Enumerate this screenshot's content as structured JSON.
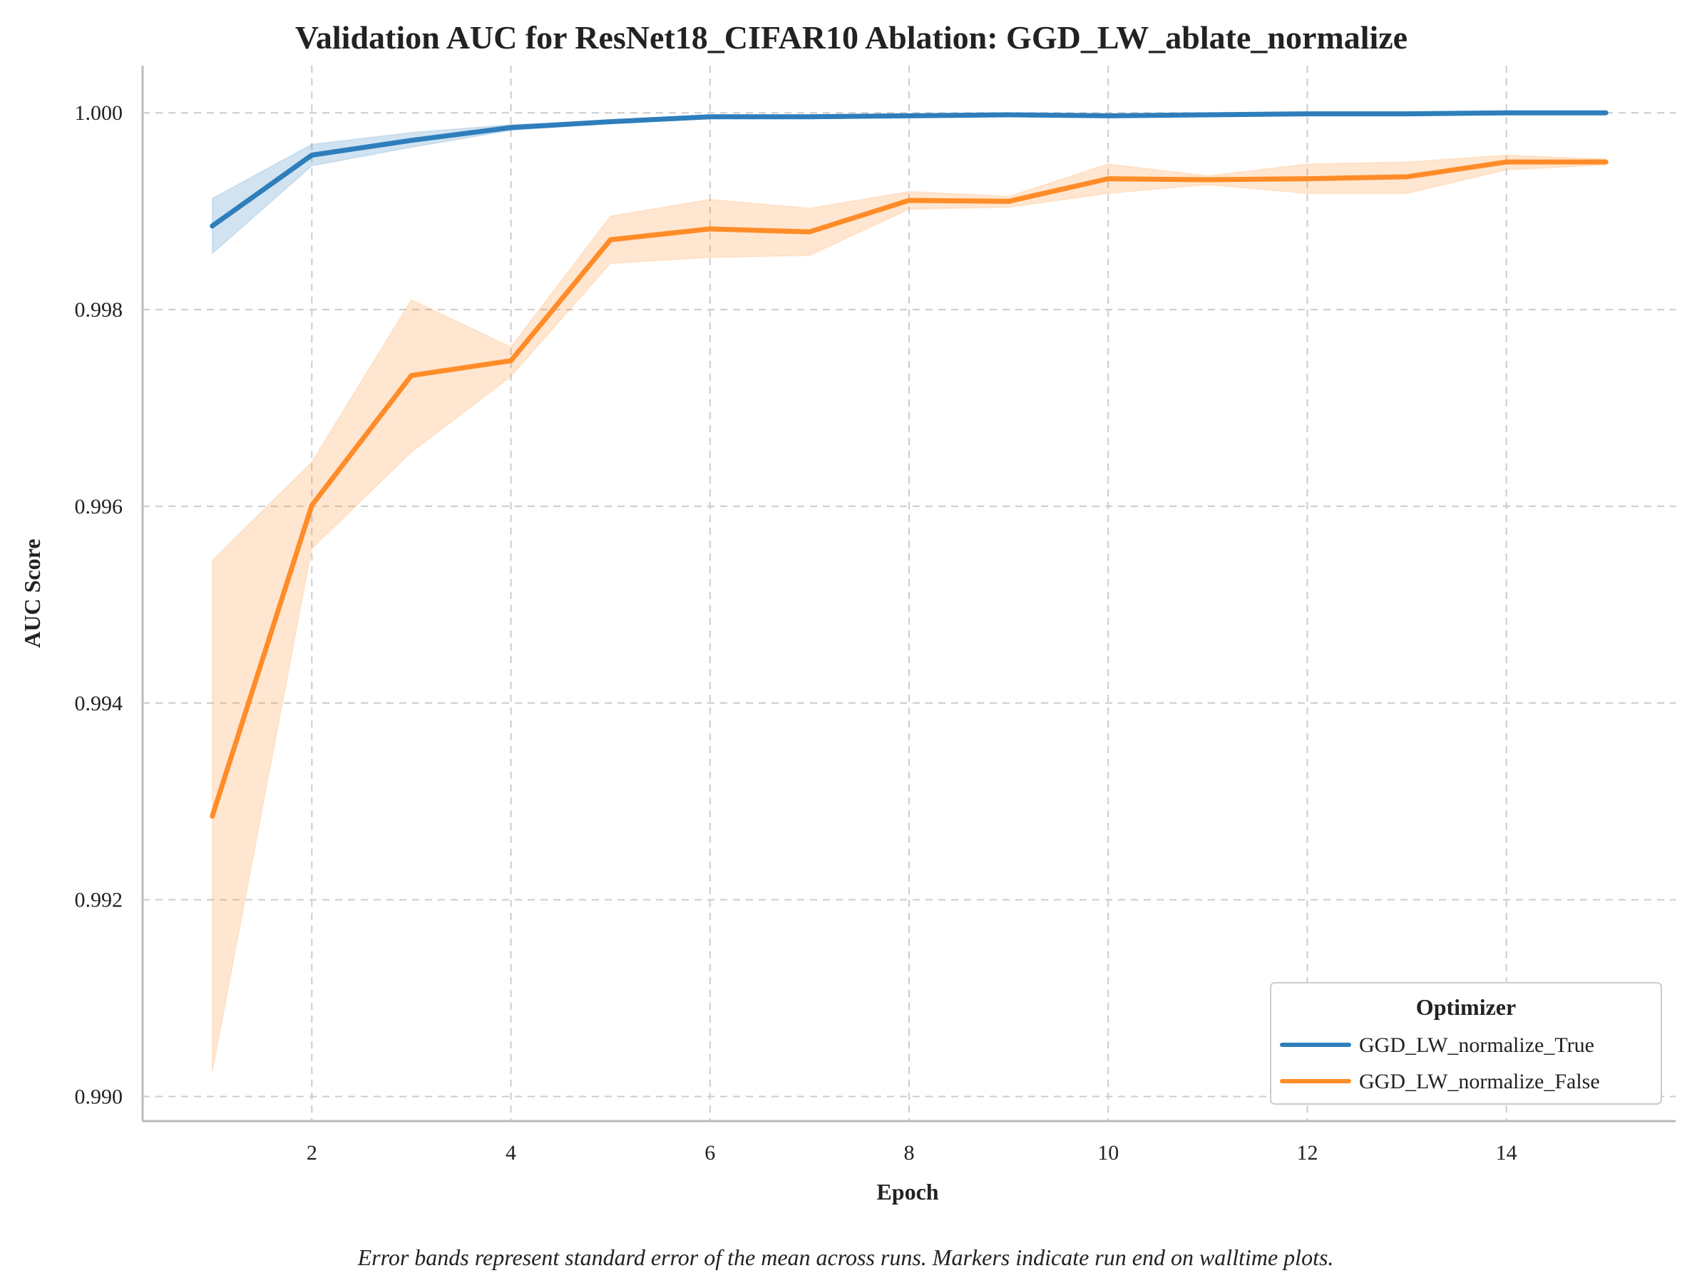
{
  "chart_data": {
    "type": "line",
    "title": "Validation AUC for ResNet18_CIFAR10 Ablation: GGD_LW_ablate_normalize",
    "xlabel": "Epoch",
    "ylabel": "AUC Score",
    "xlim": [
      0.3,
      15.7
    ],
    "ylim": [
      0.98975,
      1.00048
    ],
    "xticks": [
      2,
      4,
      6,
      8,
      10,
      12,
      14
    ],
    "yticks": [
      0.99,
      0.992,
      0.994,
      0.996,
      0.998,
      1.0
    ],
    "ytick_labels": [
      "0.990",
      "0.992",
      "0.994",
      "0.996",
      "0.998",
      "1.000"
    ],
    "grid": true,
    "legend": {
      "title": "Optimizer",
      "position": "bottom-right"
    },
    "x": [
      1,
      2,
      3,
      4,
      5,
      6,
      7,
      8,
      9,
      10,
      11,
      12,
      13,
      14,
      15
    ],
    "series": [
      {
        "name": "GGD_LW_normalize_True",
        "color": "#2e7ebc",
        "values": [
          0.99885,
          0.99957,
          0.99972,
          0.99985,
          0.99991,
          0.99996,
          0.99996,
          0.99997,
          0.99998,
          0.99997,
          0.99998,
          0.99999,
          0.99999,
          1.0,
          1.0
        ],
        "lower": [
          0.99857,
          0.99946,
          0.99965,
          0.99982,
          0.9999,
          0.99995,
          0.99995,
          0.99996,
          0.99997,
          0.99996,
          0.99997,
          0.99998,
          0.99998,
          0.99999,
          0.99999
        ],
        "upper": [
          0.99913,
          0.99968,
          0.9998,
          0.99988,
          0.99992,
          0.99997,
          0.99997,
          0.99998,
          0.99999,
          0.99998,
          0.99999,
          1.0,
          1.0,
          1.0,
          1.0
        ]
      },
      {
        "name": "GGD_LW_normalize_False",
        "color": "#ff8c28",
        "values": [
          0.99285,
          0.99601,
          0.99733,
          0.99748,
          0.99871,
          0.99882,
          0.99879,
          0.99911,
          0.9991,
          0.99933,
          0.99932,
          0.99933,
          0.99935,
          0.9995,
          0.9995
        ],
        "lower": [
          0.99025,
          0.99557,
          0.99655,
          0.99732,
          0.99847,
          0.99853,
          0.99855,
          0.99902,
          0.99904,
          0.99918,
          0.99927,
          0.99918,
          0.99918,
          0.99942,
          0.99947
        ],
        "upper": [
          0.99545,
          0.99645,
          0.9981,
          0.99762,
          0.99895,
          0.99912,
          0.99903,
          0.9992,
          0.99915,
          0.99948,
          0.99936,
          0.99948,
          0.9995,
          0.99957,
          0.99953
        ]
      }
    ],
    "caption": "Error bands represent standard error of the mean across runs. Markers indicate run end on walltime plots."
  }
}
